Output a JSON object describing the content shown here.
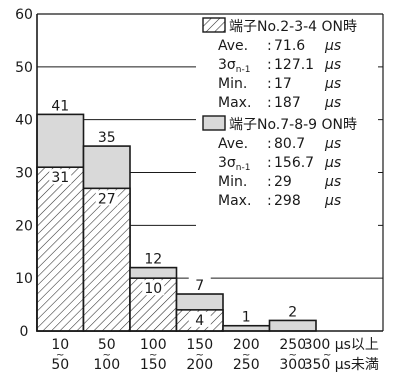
{
  "chart_data": {
    "type": "bar",
    "categories": [
      {
        "top": "10",
        "bottom": "50"
      },
      {
        "top": "50",
        "bottom": "100"
      },
      {
        "top": "100",
        "bottom": "150"
      },
      {
        "top": "150",
        "bottom": "200"
      },
      {
        "top": "200",
        "bottom": "250"
      },
      {
        "top": "250",
        "bottom": "300"
      },
      {
        "top": "300 μs以上",
        "bottom": "350 μs未満"
      }
    ],
    "series": [
      {
        "name": "端子No.2-3-4 ON時",
        "style": "hatched",
        "values": [
          31,
          27,
          10,
          4,
          0,
          0,
          0
        ],
        "labels": [
          "31",
          "27",
          "10",
          "4",
          "",
          "",
          ""
        ],
        "stats": [
          {
            "label": "Ave.",
            "value": "71.6",
            "unit": "μs"
          },
          {
            "label": "3σn-1",
            "value": "127.1",
            "unit": "μs"
          },
          {
            "label": "Min.",
            "value": "17",
            "unit": "μs"
          },
          {
            "label": "Max.",
            "value": "187",
            "unit": "μs"
          }
        ]
      },
      {
        "name": "端子No.7-8-9 ON時",
        "style": "gray",
        "values": [
          41,
          35,
          12,
          7,
          1,
          2,
          0
        ],
        "labels": [
          "41",
          "35",
          "12",
          "7",
          "1",
          "2",
          ""
        ],
        "stats": [
          {
            "label": "Ave.",
            "value": "80.7",
            "unit": "μs"
          },
          {
            "label": "3σn-1",
            "value": "156.7",
            "unit": "μs"
          },
          {
            "label": "Min.",
            "value": "29",
            "unit": "μs"
          },
          {
            "label": "Max.",
            "value": "298",
            "unit": "μs"
          }
        ]
      }
    ],
    "yticks": [
      0,
      10,
      20,
      30,
      40,
      50,
      60
    ],
    "ylim": [
      0,
      60
    ],
    "title": "",
    "xlabel": "",
    "ylabel": "",
    "grid": true,
    "legend_position": "top-right",
    "colors": {
      "gray_fill": "#d9d9d9",
      "hatch_fill": "#ffffff",
      "hatch_line": "#2a2a2a",
      "axis": "#1a1a1a",
      "grid": "#1a1a1a"
    }
  }
}
